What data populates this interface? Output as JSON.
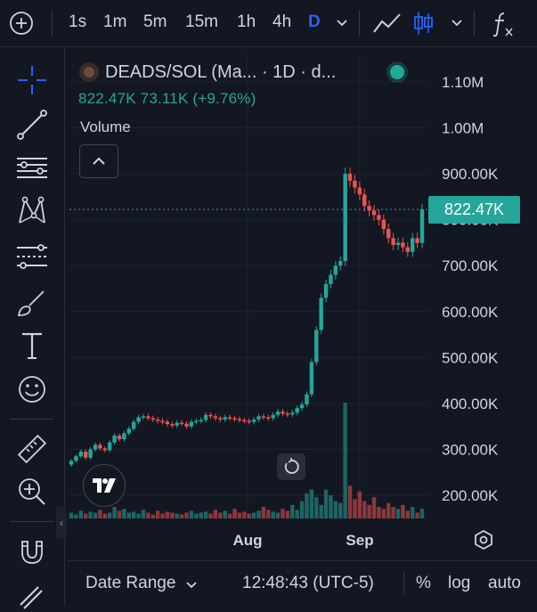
{
  "toolbar": {
    "intervals": [
      "1s",
      "1m",
      "5m",
      "15m",
      "1h",
      "4h",
      "D"
    ],
    "active_interval": "D",
    "icons": [
      "plus-circle-icon",
      "chevron-down-icon",
      "line-chart-icon",
      "candles-icon",
      "function-icon"
    ]
  },
  "tools": [
    "crosshair-icon",
    "trend-line-icon",
    "horizontal-lines-icon",
    "pattern-icon",
    "ruler-lines-icon",
    "brush-icon",
    "text-icon",
    "emoji-icon",
    "measure-icon",
    "zoom-in-icon",
    "magnet-icon",
    "pencil-lock-icon"
  ],
  "legend": {
    "title": "DEADS/SOL (Ma... · 1D · d...",
    "values": "822.47K  73.11K (+9.76%)",
    "volume_label": "Volume"
  },
  "price_label": "822.47K",
  "bottom": {
    "date_range": "Date Range",
    "clock": "12:48:43 (UTC-5)",
    "percent": "%",
    "log": "log",
    "auto": "auto"
  },
  "colors": {
    "background": "#131722",
    "up": "#26a69a",
    "down": "#ef5350",
    "accent": "#2962ff"
  },
  "chart_data": {
    "type": "candlestick",
    "title": "DEADS/SOL (Ma... · 1D · d...",
    "y_ticks": [
      "1.10M",
      "1.00M",
      "900.00K",
      "800.00K",
      "700.00K",
      "600.00K",
      "500.00K",
      "400.00K",
      "300.00K",
      "200.00K"
    ],
    "x_ticks": [
      "Aug",
      "Sep"
    ],
    "ylim": [
      150000,
      1150000
    ],
    "last_price": 822470,
    "change": "73.11K (+9.76%)",
    "close_series": [
      275000,
      285000,
      295000,
      282000,
      300000,
      310000,
      302000,
      298000,
      315000,
      330000,
      322000,
      335000,
      345000,
      360000,
      370000,
      372000,
      368000,
      365000,
      362000,
      360000,
      355000,
      352000,
      358000,
      356000,
      350000,
      360000,
      362000,
      364000,
      375000,
      372000,
      368000,
      365000,
      370000,
      368000,
      366000,
      364000,
      362000,
      360000,
      365000,
      372000,
      370000,
      368000,
      375000,
      382000,
      378000,
      376000,
      380000,
      390000,
      398000,
      420000,
      490000,
      560000,
      630000,
      660000,
      680000,
      700000,
      710000,
      900000,
      885000,
      870000,
      855000,
      830000,
      820000,
      810000,
      800000,
      780000,
      760000,
      745000,
      750000,
      740000,
      730000,
      760000,
      749360,
      822470
    ],
    "volume_series": [
      6,
      4,
      8,
      5,
      7,
      6,
      9,
      5,
      6,
      12,
      8,
      10,
      6,
      7,
      5,
      9,
      6,
      4,
      8,
      5,
      7,
      6,
      5,
      4,
      6,
      8,
      5,
      6,
      7,
      5,
      9,
      6,
      8,
      5,
      10,
      6,
      7,
      5,
      6,
      8,
      12,
      9,
      7,
      6,
      10,
      8,
      14,
      9,
      18,
      26,
      30,
      22,
      14,
      30,
      24,
      18,
      16,
      120,
      34,
      20,
      28,
      18,
      14,
      22,
      12,
      10,
      16,
      12,
      10,
      14,
      8,
      12,
      6,
      10
    ]
  }
}
